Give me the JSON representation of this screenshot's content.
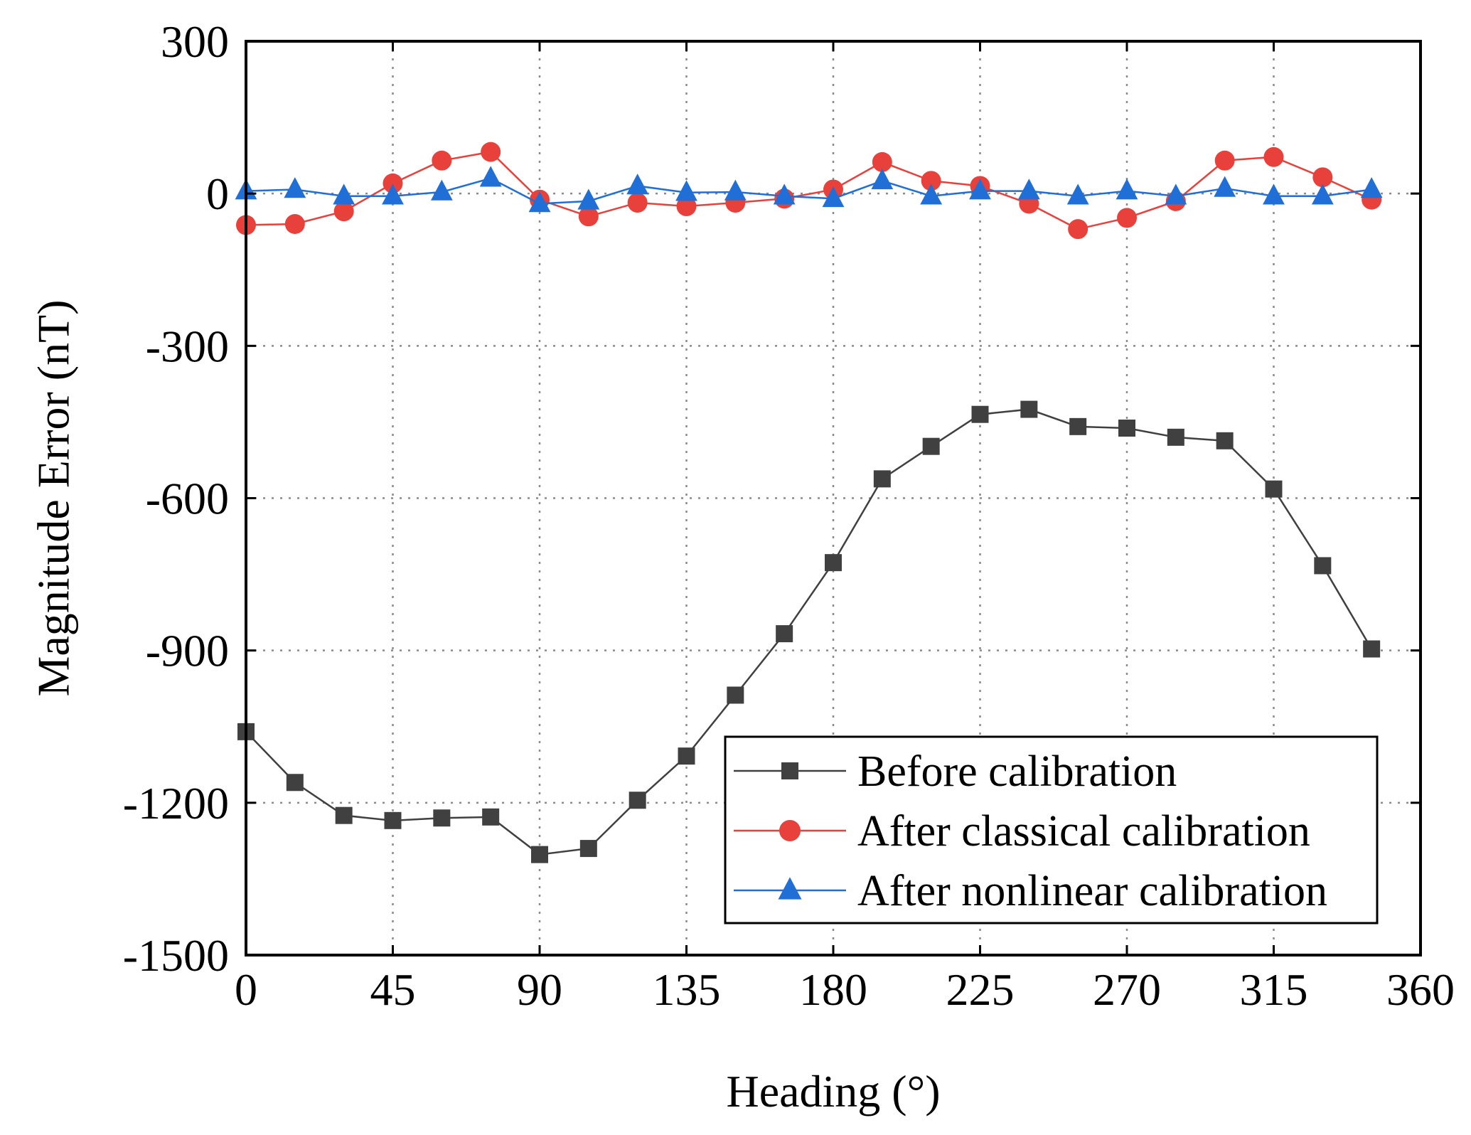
{
  "chart_data": {
    "type": "line",
    "title": "",
    "xlabel": "Heading (°)",
    "ylabel": "Magnitude Error (nT)",
    "xlim": [
      0,
      360
    ],
    "ylim": [
      -1500,
      300
    ],
    "xticks": [
      0,
      45,
      90,
      135,
      180,
      225,
      270,
      315,
      360
    ],
    "yticks": [
      300,
      0,
      -300,
      -600,
      -900,
      -1200,
      -1500
    ],
    "xtick_labels": [
      "0",
      "45",
      "90",
      "135",
      "180",
      "225",
      "270",
      "315",
      "360"
    ],
    "ytick_labels": [
      "300",
      "0",
      "-300",
      "-600",
      "-900",
      "-1200",
      "-1500"
    ],
    "grid": true,
    "legend_position": "bottom-right",
    "x": [
      0,
      15,
      30,
      45,
      60,
      75,
      90,
      105,
      120,
      135,
      150,
      165,
      180,
      195,
      210,
      225,
      240,
      255,
      270,
      285,
      300,
      315,
      330,
      345
    ],
    "series": [
      {
        "name": "Before calibration",
        "color": "#404040",
        "marker": "square",
        "values": [
          -1060,
          -1160,
          -1225,
          -1235,
          -1230,
          -1228,
          -1302,
          -1290,
          -1195,
          -1108,
          -988,
          -867,
          -727,
          -562,
          -498,
          -435,
          -425,
          -459,
          -462,
          -480,
          -487,
          -582,
          -733,
          -897
        ]
      },
      {
        "name": "After classical calibration",
        "color": "#e8413c",
        "marker": "circle",
        "values": [
          -62,
          -60,
          -35,
          20,
          65,
          82,
          -12,
          -45,
          -18,
          -25,
          -18,
          -10,
          8,
          62,
          25,
          15,
          -20,
          -70,
          -48,
          -15,
          65,
          72,
          32,
          -12
        ]
      },
      {
        "name": "After nonlinear calibration",
        "color": "#1f6fd6",
        "marker": "triangle",
        "values": [
          5,
          8,
          -5,
          -5,
          3,
          30,
          -20,
          -15,
          15,
          2,
          3,
          -5,
          -10,
          25,
          -5,
          5,
          5,
          -5,
          5,
          -5,
          10,
          -5,
          -5,
          8
        ]
      }
    ]
  }
}
